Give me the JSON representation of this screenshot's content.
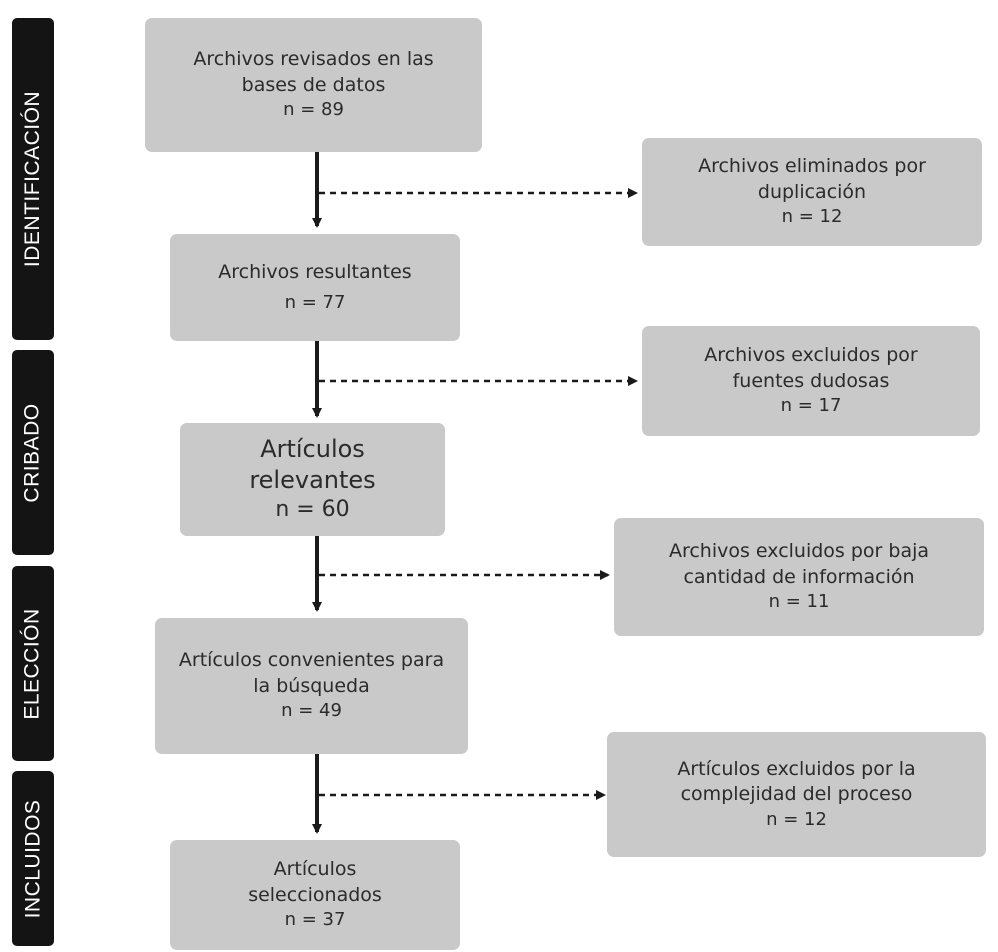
{
  "phases": [
    {
      "id": "identificacion",
      "label": "IDENTIFICACIÓN"
    },
    {
      "id": "cribado",
      "label": "CRIBADO"
    },
    {
      "id": "eleccion",
      "label": "ELECCIÓN"
    },
    {
      "id": "incluidos",
      "label": "INCLUIDOS"
    }
  ],
  "main_boxes": [
    {
      "text": "Archivos revisados en las bases de datos",
      "count": "n = 89"
    },
    {
      "text": "Archivos resultantes",
      "count": "n = 77"
    },
    {
      "text": "Artículos relevantes",
      "count": "n = 60"
    },
    {
      "text": "Artículos convenientes para la búsqueda",
      "count": "n = 49"
    },
    {
      "text": "Artículos seleccionados",
      "count": "n = 37"
    }
  ],
  "excluded_boxes": [
    {
      "text": "Archivos eliminados por duplicación",
      "count": "n = 12"
    },
    {
      "text": "Archivos excluidos por fuentes dudosas",
      "count": "n = 17"
    },
    {
      "text": "Archivos excluidos por baja cantidad de información",
      "count": "n = 11"
    },
    {
      "text": "Artículos excluidos por la complejidad del proceso",
      "count": "n = 12"
    }
  ],
  "colors": {
    "box_fill": "#c9c9c9",
    "phase_fill": "#141414",
    "arrow": "#1a1a1a"
  }
}
